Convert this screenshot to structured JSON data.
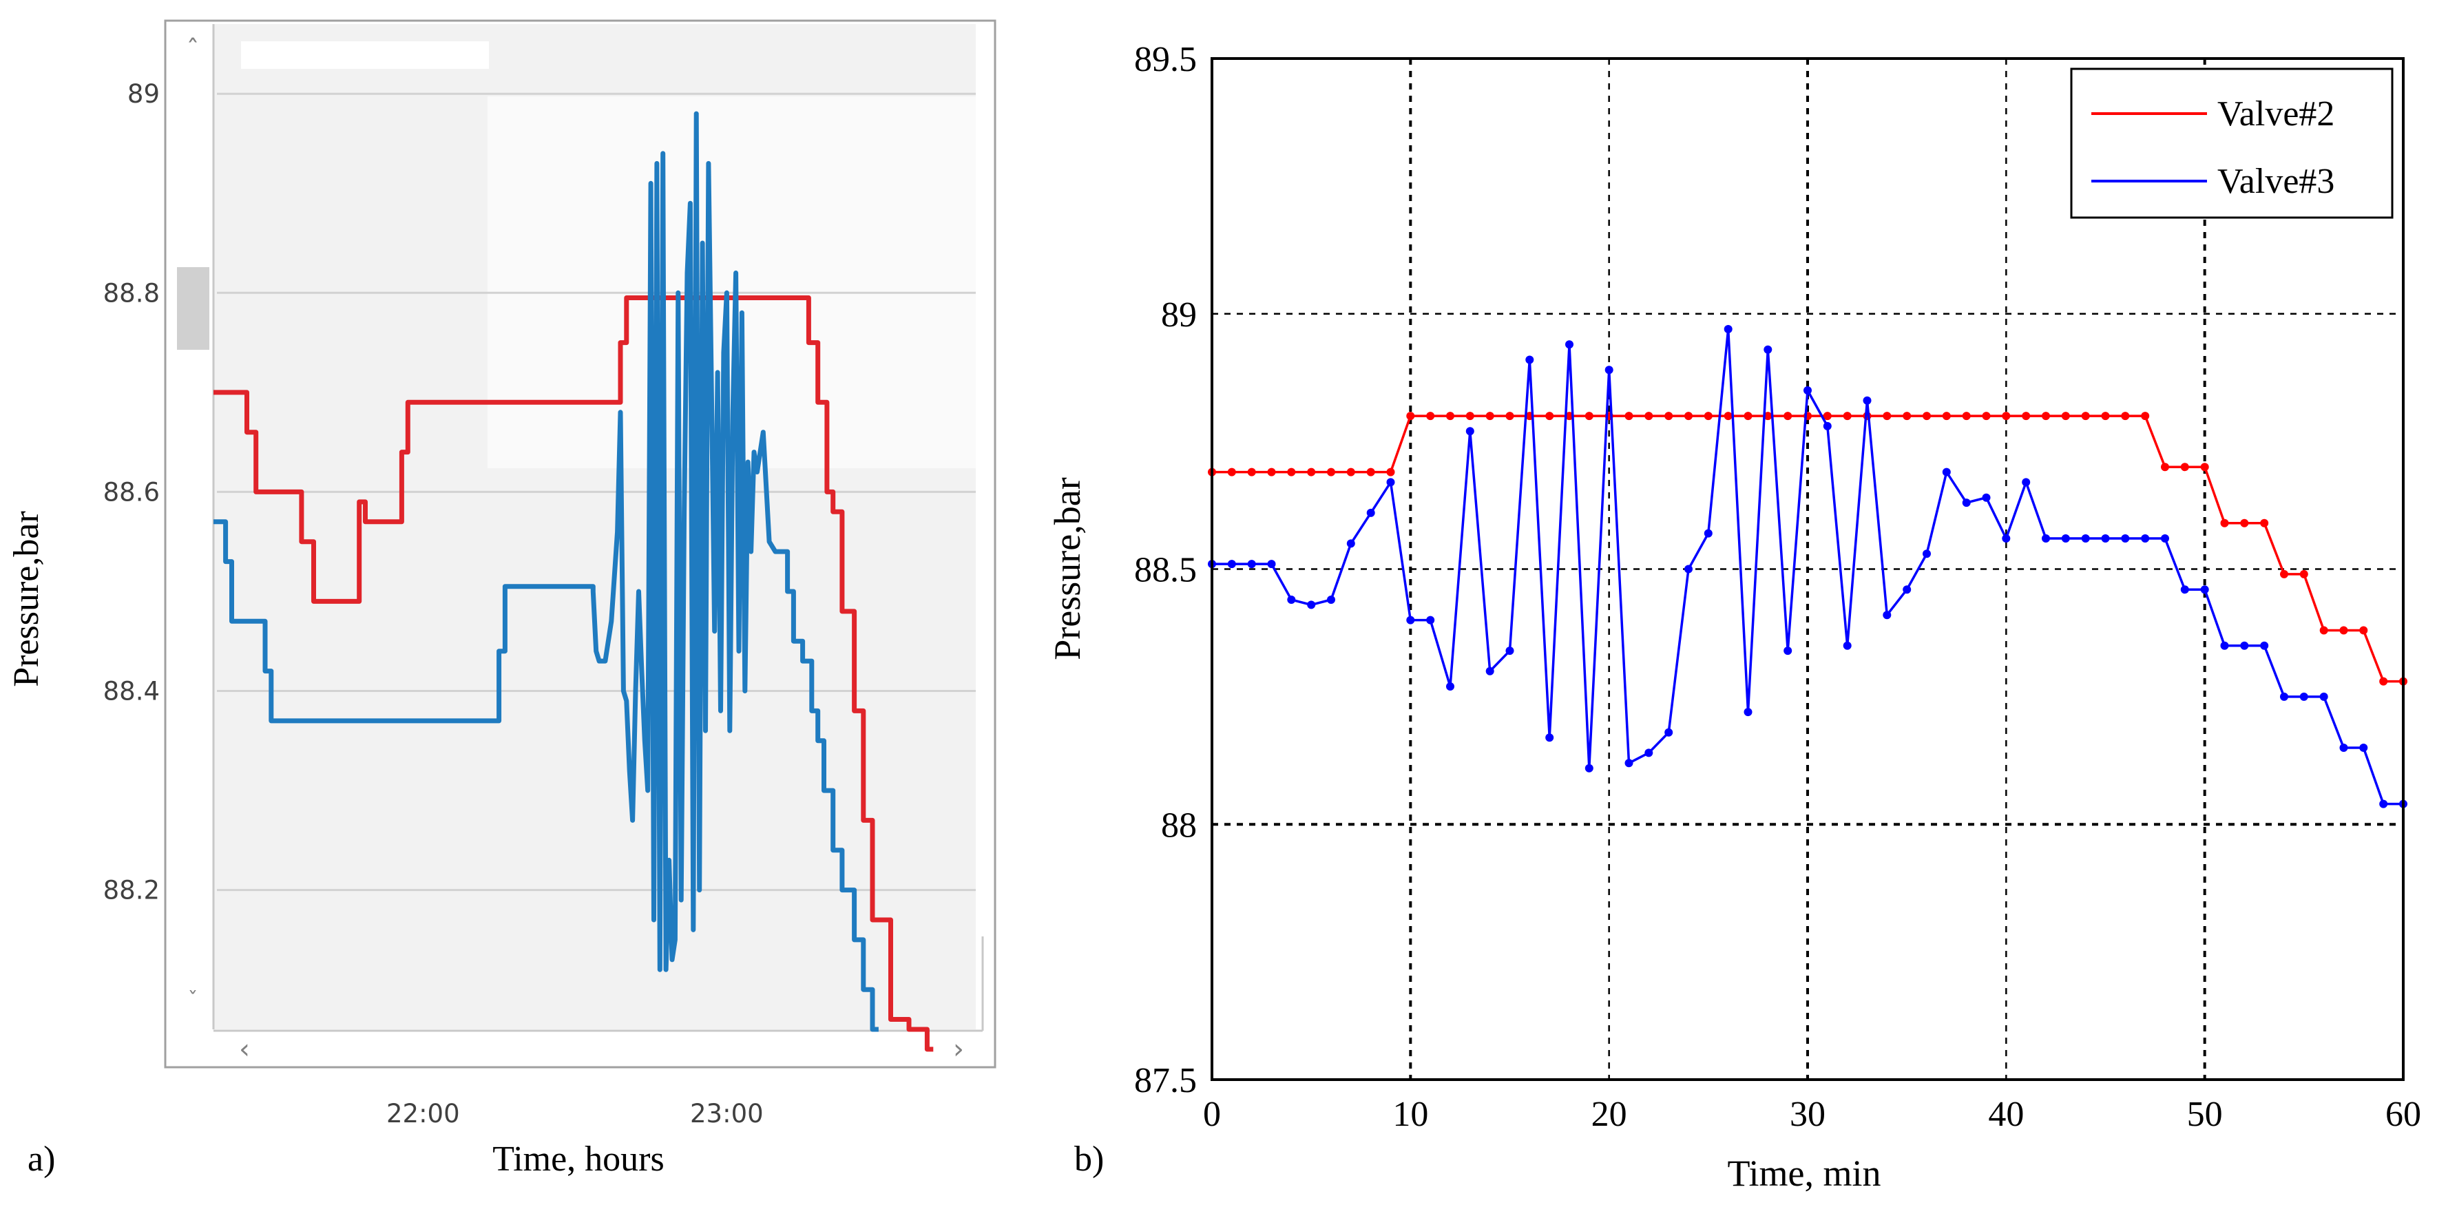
{
  "panel_labels": {
    "a": "a)",
    "b": "b)"
  },
  "colors": {
    "valve2": "#e0242a",
    "valve3": "#1f7bc0",
    "valve2_b": "#ff0000",
    "valve3_b": "#0000ff",
    "grid_a": "#d2d2d2",
    "panel_bg": "#f2f2f2"
  },
  "scrollbar_icons": {
    "up": "chevron-up-icon",
    "down": "chevron-down-icon",
    "left": "chevron-left-icon",
    "right": "chevron-right-icon"
  },
  "chart_data": [
    {
      "id": "a",
      "type": "line",
      "title": "",
      "xlabel": "Time, hours",
      "ylabel": "Pressure,bar",
      "xticks": [
        {
          "value": 22.0,
          "label": "22:00"
        },
        {
          "value": 23.0,
          "label": "23:00"
        }
      ],
      "yticks": [
        {
          "value": 88.2,
          "label": "88.2"
        },
        {
          "value": 88.4,
          "label": "88.4"
        },
        {
          "value": 88.6,
          "label": "88.6"
        },
        {
          "value": 88.8,
          "label": "88.8"
        },
        {
          "value": 89.0,
          "label": "89"
        }
      ],
      "xlim": [
        21.31,
        23.82
      ],
      "ylim": [
        88.06,
        89.07
      ],
      "grid": "horizontal",
      "series": [
        {
          "name": "Valve#2",
          "color_key": "valve2",
          "x": [
            21.31,
            21.42,
            21.42,
            21.45,
            21.45,
            21.6,
            21.6,
            21.64,
            21.64,
            21.79,
            21.79,
            21.81,
            21.81,
            21.83,
            21.83,
            21.93,
            21.93,
            21.95,
            21.95,
            22.65,
            22.65,
            22.67,
            22.67,
            23.27,
            23.27,
            23.3,
            23.3,
            23.33,
            23.33,
            23.35,
            23.35,
            23.38,
            23.38,
            23.42,
            23.42,
            23.45,
            23.45,
            23.48,
            23.48,
            23.54,
            23.54,
            23.6,
            23.6,
            23.66,
            23.66,
            23.68
          ],
          "y": [
            88.7,
            88.7,
            88.66,
            88.66,
            88.6,
            88.6,
            88.55,
            88.55,
            88.49,
            88.49,
            88.59,
            88.59,
            88.57,
            88.57,
            88.57,
            88.57,
            88.64,
            88.64,
            88.69,
            88.69,
            88.75,
            88.75,
            88.795,
            88.795,
            88.75,
            88.75,
            88.69,
            88.69,
            88.6,
            88.6,
            88.58,
            88.58,
            88.48,
            88.48,
            88.38,
            88.38,
            88.27,
            88.27,
            88.17,
            88.17,
            88.07,
            88.07,
            88.06,
            88.06,
            88.04,
            88.04
          ]
        },
        {
          "name": "Valve#3",
          "color_key": "valve3",
          "x": [
            21.31,
            21.35,
            21.35,
            21.37,
            21.37,
            21.48,
            21.48,
            21.5,
            21.5,
            22.25,
            22.25,
            22.27,
            22.27,
            22.56,
            22.56,
            22.57,
            22.58,
            22.6,
            22.62,
            22.64,
            22.65,
            22.66,
            22.67,
            22.68,
            22.69,
            22.7,
            22.71,
            22.72,
            22.73,
            22.74,
            22.75,
            22.76,
            22.77,
            22.78,
            22.79,
            22.8,
            22.81,
            22.82,
            22.83,
            22.84,
            22.85,
            22.86,
            22.87,
            22.88,
            22.89,
            22.9,
            22.91,
            22.92,
            22.93,
            22.94,
            22.95,
            22.96,
            22.97,
            22.98,
            22.99,
            23.0,
            23.01,
            23.02,
            23.03,
            23.04,
            23.05,
            23.06,
            23.07,
            23.08,
            23.09,
            23.1,
            23.12,
            23.14,
            23.16,
            23.2,
            23.2,
            23.22,
            23.22,
            23.25,
            23.25,
            23.28,
            23.28,
            23.3,
            23.3,
            23.32,
            23.32,
            23.35,
            23.35,
            23.38,
            23.38,
            23.42,
            23.42,
            23.45,
            23.45,
            23.48,
            23.48,
            23.5
          ],
          "y": [
            88.57,
            88.57,
            88.53,
            88.53,
            88.47,
            88.47,
            88.42,
            88.42,
            88.37,
            88.37,
            88.44,
            88.44,
            88.505,
            88.505,
            88.5,
            88.44,
            88.43,
            88.43,
            88.47,
            88.56,
            88.68,
            88.4,
            88.39,
            88.32,
            88.27,
            88.4,
            88.5,
            88.42,
            88.35,
            88.3,
            88.91,
            88.17,
            88.93,
            88.12,
            88.94,
            88.12,
            88.23,
            88.13,
            88.15,
            88.8,
            88.19,
            88.58,
            88.82,
            88.89,
            88.16,
            88.98,
            88.2,
            88.85,
            88.36,
            88.93,
            88.7,
            88.46,
            88.72,
            88.38,
            88.74,
            88.8,
            88.36,
            88.68,
            88.82,
            88.44,
            88.78,
            88.4,
            88.63,
            88.54,
            88.64,
            88.62,
            88.66,
            88.55,
            88.54,
            88.54,
            88.5,
            88.5,
            88.45,
            88.45,
            88.43,
            88.43,
            88.38,
            88.38,
            88.35,
            88.35,
            88.3,
            88.3,
            88.24,
            88.24,
            88.2,
            88.2,
            88.15,
            88.15,
            88.1,
            88.1,
            88.06,
            88.06
          ]
        }
      ]
    },
    {
      "id": "b",
      "type": "line",
      "title": "",
      "xlabel": "Time, min",
      "ylabel": "Pressure,bar",
      "xticks": [
        {
          "value": 0,
          "label": "0"
        },
        {
          "value": 10,
          "label": "10"
        },
        {
          "value": 20,
          "label": "20"
        },
        {
          "value": 30,
          "label": "30"
        },
        {
          "value": 40,
          "label": "40"
        },
        {
          "value": 50,
          "label": "50"
        },
        {
          "value": 60,
          "label": "60"
        }
      ],
      "yticks": [
        {
          "value": 87.5,
          "label": "87.5"
        },
        {
          "value": 88.0,
          "label": "88"
        },
        {
          "value": 88.5,
          "label": "88.5"
        },
        {
          "value": 89.0,
          "label": "89"
        },
        {
          "value": 89.5,
          "label": "89.5"
        }
      ],
      "xlim": [
        0,
        60
      ],
      "ylim": [
        87.5,
        89.5
      ],
      "grid": true,
      "legend_position": "top-right",
      "series": [
        {
          "name": "Valve#2",
          "color_key": "valve2_b",
          "x": [
            0,
            1,
            2,
            3,
            4,
            5,
            6,
            7,
            8,
            9,
            10,
            11,
            12,
            13,
            14,
            15,
            16,
            17,
            18,
            19,
            20,
            21,
            22,
            23,
            24,
            25,
            26,
            27,
            28,
            29,
            30,
            31,
            32,
            33,
            34,
            35,
            36,
            37,
            38,
            39,
            40,
            41,
            42,
            43,
            44,
            45,
            46,
            47,
            48,
            49,
            50,
            51,
            52,
            53,
            54,
            55,
            56,
            57,
            58,
            59,
            60
          ],
          "y": [
            88.69,
            88.69,
            88.69,
            88.69,
            88.69,
            88.69,
            88.69,
            88.69,
            88.69,
            88.69,
            88.8,
            88.8,
            88.8,
            88.8,
            88.8,
            88.8,
            88.8,
            88.8,
            88.8,
            88.8,
            88.8,
            88.8,
            88.8,
            88.8,
            88.8,
            88.8,
            88.8,
            88.8,
            88.8,
            88.8,
            88.8,
            88.8,
            88.8,
            88.8,
            88.8,
            88.8,
            88.8,
            88.8,
            88.8,
            88.8,
            88.8,
            88.8,
            88.8,
            88.8,
            88.8,
            88.8,
            88.8,
            88.8,
            88.7,
            88.7,
            88.7,
            88.59,
            88.59,
            88.59,
            88.49,
            88.49,
            88.38,
            88.38,
            88.38,
            88.28,
            88.28
          ]
        },
        {
          "name": "Valve#3",
          "color_key": "valve3_b",
          "x": [
            0,
            1,
            2,
            3,
            4,
            5,
            6,
            7,
            8,
            9,
            10,
            11,
            12,
            13,
            14,
            15,
            16,
            17,
            18,
            19,
            20,
            21,
            22,
            23,
            24,
            25,
            26,
            27,
            28,
            29,
            30,
            31,
            32,
            33,
            34,
            35,
            36,
            37,
            38,
            39,
            40,
            41,
            42,
            43,
            44,
            45,
            46,
            47,
            48,
            49,
            50,
            51,
            52,
            53,
            54,
            55,
            56,
            57,
            58,
            59,
            60
          ],
          "y": [
            88.51,
            88.51,
            88.51,
            88.51,
            88.44,
            88.43,
            88.44,
            88.55,
            88.61,
            88.67,
            88.4,
            88.4,
            88.27,
            88.77,
            88.3,
            88.34,
            88.91,
            88.17,
            88.94,
            88.11,
            88.89,
            88.12,
            88.14,
            88.18,
            88.5,
            88.57,
            88.97,
            88.22,
            88.93,
            88.34,
            88.85,
            88.78,
            88.35,
            88.83,
            88.41,
            88.46,
            88.53,
            88.69,
            88.63,
            88.64,
            88.56,
            88.67,
            88.56,
            88.56,
            88.56,
            88.56,
            88.56,
            88.56,
            88.56,
            88.46,
            88.46,
            88.35,
            88.35,
            88.35,
            88.25,
            88.25,
            88.25,
            88.15,
            88.15,
            88.04,
            88.04
          ]
        }
      ]
    }
  ]
}
